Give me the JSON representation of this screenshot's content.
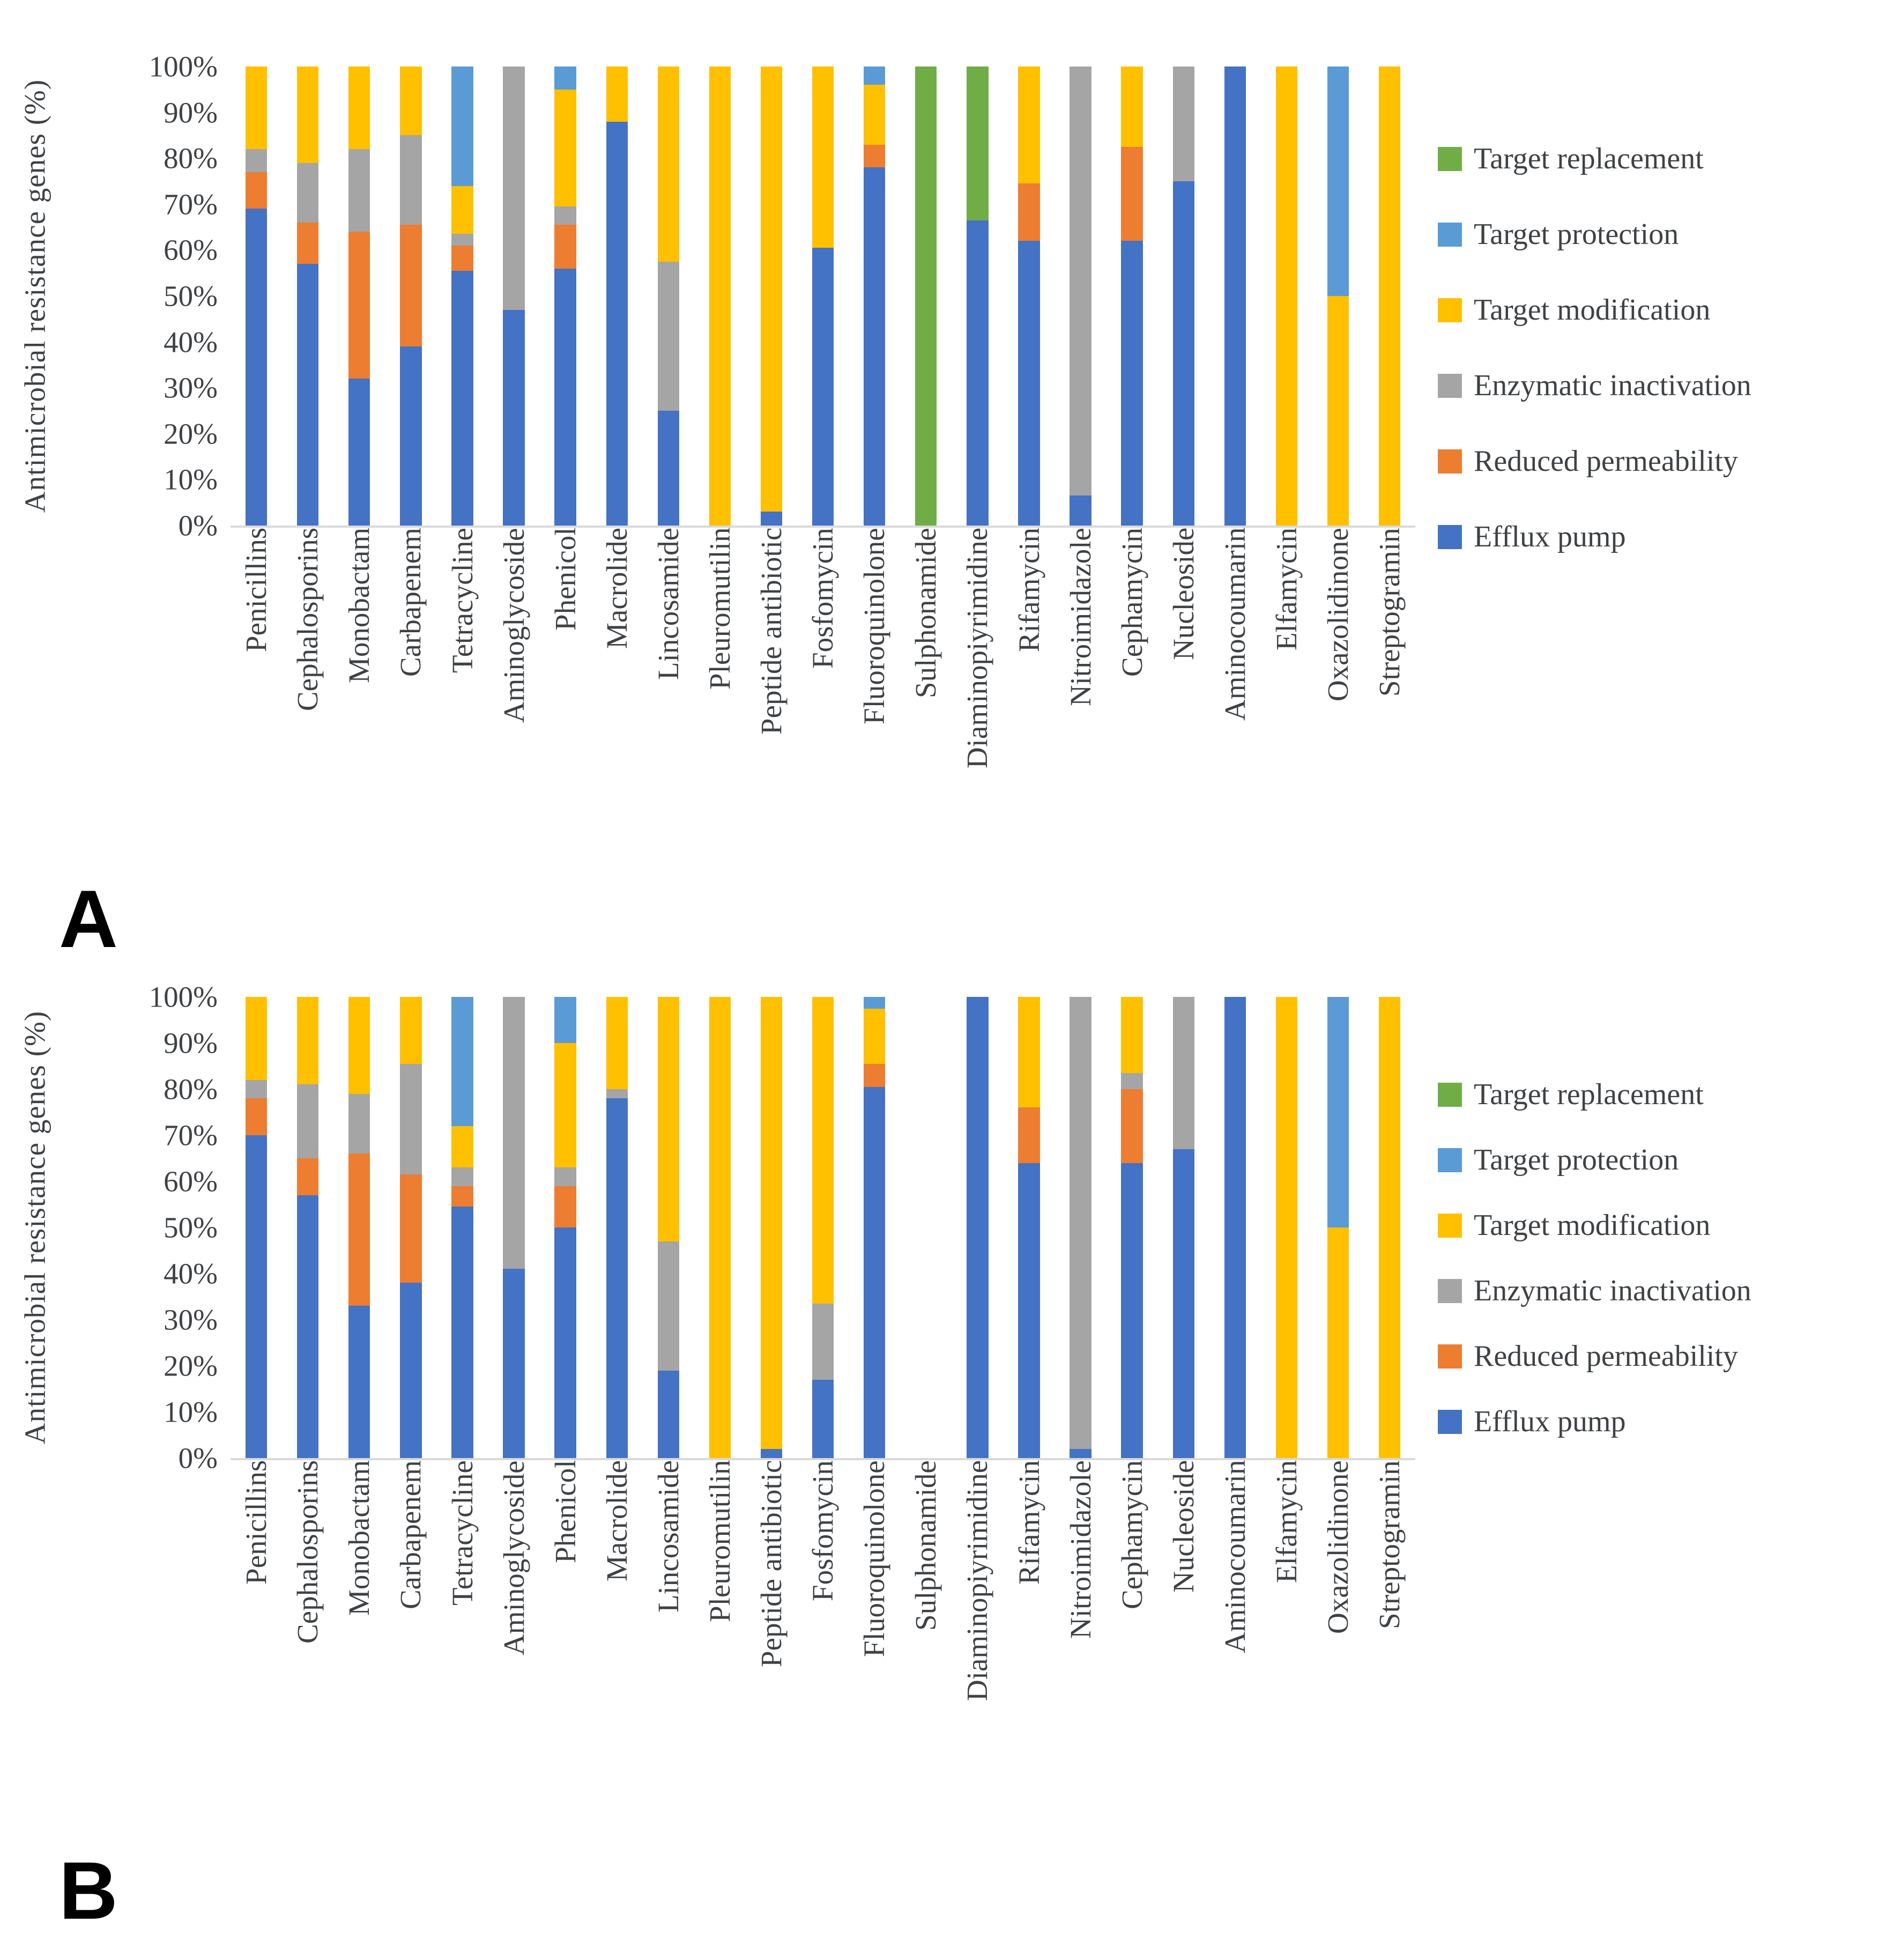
{
  "page": {
    "background": "#ffffff"
  },
  "panels": {
    "a_label": "A",
    "b_label": "B"
  },
  "legend": {
    "items": [
      {
        "label": "Target replacement",
        "color": "#70AD47"
      },
      {
        "label": "Target protection",
        "color": "#5B9BD5"
      },
      {
        "label": "Target modification",
        "color": "#FFC000"
      },
      {
        "label": "Enzymatic inactivation",
        "color": "#A5A5A5"
      },
      {
        "label": "Reduced permeability",
        "color": "#ED7D31"
      },
      {
        "label": "Efflux pump",
        "color": "#4472C4"
      }
    ]
  },
  "chart_data": [
    {
      "type": "bar",
      "stacked": true,
      "units": "percent",
      "panel": "A",
      "title": "",
      "ylabel": "Antimicrobial resistance genes (%)",
      "xlabel": "",
      "ylim": [
        0,
        100
      ],
      "grid": false,
      "legend_position": "right",
      "yticks": [
        "100%",
        "90%",
        "80%",
        "70%",
        "60%",
        "50%",
        "40%",
        "30%",
        "20%",
        "10%",
        "0%"
      ],
      "categories": [
        "Penicillins",
        "Cephalosporins",
        "Monobactam",
        "Carbapenem",
        "Tetracycline",
        "Aminoglycoside",
        "Phenicol",
        "Macrolide",
        "Lincosamide",
        "Pleuromutilin",
        "Peptide antibiotic",
        "Fosfomycin",
        "Fluoroquinolone",
        "Sulphonamide",
        "Diaminopiyrimidine",
        "Rifamycin",
        "Nitroimidazole",
        "Cephamycin",
        "Nucleoside",
        "Aminocoumarin",
        "Elfamycin",
        "Oxazolidinone",
        "Streptogramin"
      ],
      "series": [
        {
          "name": "Efflux pump",
          "color": "#4472C4",
          "values": [
            69,
            57,
            32,
            39,
            55.5,
            47,
            56,
            88,
            25,
            0,
            3,
            60.5,
            78,
            0,
            66.5,
            62,
            6.5,
            62,
            75,
            100,
            0,
            0,
            0
          ]
        },
        {
          "name": "Reduced permeability",
          "color": "#ED7D31",
          "values": [
            8,
            9,
            32,
            26.5,
            5.5,
            0,
            9.5,
            0,
            0,
            0,
            0,
            0,
            5,
            0,
            0,
            12.5,
            0,
            20.5,
            0,
            0,
            0,
            0,
            0
          ]
        },
        {
          "name": "Enzymatic inactivation",
          "color": "#A5A5A5",
          "values": [
            5,
            13,
            18,
            19.5,
            2.5,
            53,
            4,
            0,
            32.5,
            0,
            0,
            0,
            0,
            0,
            0,
            0,
            93.5,
            0,
            25,
            0,
            0,
            0,
            0
          ]
        },
        {
          "name": "Target modification",
          "color": "#FFC000",
          "values": [
            18,
            21,
            18,
            15,
            10.5,
            0,
            25.5,
            12,
            42.5,
            100,
            97,
            39.5,
            13,
            0,
            0,
            25.5,
            0,
            17.5,
            0,
            0,
            100,
            50,
            100
          ]
        },
        {
          "name": "Target protection",
          "color": "#5B9BD5",
          "values": [
            0,
            0,
            0,
            0,
            26,
            0,
            5,
            0,
            0,
            0,
            0,
            0,
            4,
            0,
            0,
            0,
            0,
            0,
            0,
            0,
            0,
            50,
            0
          ]
        },
        {
          "name": "Target replacement",
          "color": "#70AD47",
          "values": [
            0,
            0,
            0,
            0,
            0,
            0,
            0,
            0,
            0,
            0,
            0,
            0,
            0,
            100,
            33.5,
            0,
            0,
            0,
            0,
            0,
            0,
            0,
            0
          ]
        }
      ]
    },
    {
      "type": "bar",
      "stacked": true,
      "units": "percent",
      "panel": "B",
      "title": "",
      "ylabel": "Antimicrobial resistance genes (%)",
      "xlabel": "",
      "ylim": [
        0,
        100
      ],
      "grid": false,
      "legend_position": "right",
      "yticks": [
        "100%",
        "90%",
        "80%",
        "70%",
        "60%",
        "50%",
        "40%",
        "30%",
        "20%",
        "10%",
        "0%"
      ],
      "categories": [
        "Penicillins",
        "Cephalosporins",
        "Monobactam",
        "Carbapenem",
        "Tetracycline",
        "Aminoglycoside",
        "Phenicol",
        "Macrolide",
        "Lincosamide",
        "Pleuromutilin",
        "Peptide antibiotic",
        "Fosfomycin",
        "Fluoroquinolone",
        "Sulphonamide",
        "Diaminopiyrimidine",
        "Rifamycin",
        "Nitroimidazole",
        "Cephamycin",
        "Nucleoside",
        "Aminocoumarin",
        "Elfamycin",
        "Oxazolidinone",
        "Streptogramin"
      ],
      "series": [
        {
          "name": "Efflux pump",
          "color": "#4472C4",
          "values": [
            70,
            57,
            33,
            38,
            54.5,
            41,
            50,
            78,
            19,
            0,
            2,
            17,
            80.5,
            0,
            100,
            64,
            2,
            64,
            67,
            100,
            0,
            0,
            0
          ]
        },
        {
          "name": "Reduced permeability",
          "color": "#ED7D31",
          "values": [
            8,
            8,
            33,
            23.5,
            4.5,
            0,
            9,
            0,
            0,
            0,
            0,
            0,
            5,
            0,
            0,
            12,
            0,
            16,
            0,
            0,
            0,
            0,
            0
          ]
        },
        {
          "name": "Enzymatic inactivation",
          "color": "#A5A5A5",
          "values": [
            4,
            16,
            13,
            24,
            4,
            59,
            4,
            2,
            28,
            0,
            0,
            16.5,
            0,
            0,
            0,
            0,
            98,
            3.5,
            33,
            0,
            0,
            0,
            0
          ]
        },
        {
          "name": "Target modification",
          "color": "#FFC000",
          "values": [
            18,
            19,
            21,
            14.5,
            9,
            0,
            27,
            20,
            53,
            100,
            98,
            66.5,
            12,
            0,
            0,
            24,
            0,
            16.5,
            0,
            0,
            100,
            50,
            100
          ]
        },
        {
          "name": "Target protection",
          "color": "#5B9BD5",
          "values": [
            0,
            0,
            0,
            0,
            28,
            0,
            10,
            0,
            0,
            0,
            0,
            0,
            2.5,
            0,
            0,
            0,
            0,
            0,
            0,
            0,
            0,
            50,
            0
          ]
        },
        {
          "name": "Target replacement",
          "color": "#70AD47",
          "values": [
            0,
            0,
            0,
            0,
            0,
            0,
            0,
            0,
            0,
            0,
            0,
            0,
            0,
            0,
            0,
            0,
            0,
            0,
            0,
            0,
            0,
            0,
            0
          ]
        }
      ]
    }
  ],
  "layout": {
    "plot_height_a": 856,
    "plot_height_b": 860,
    "xlabel_height_a": 775,
    "xlabel_height_b": 780,
    "legend_top_a": 140,
    "legend_top_b": 150
  }
}
